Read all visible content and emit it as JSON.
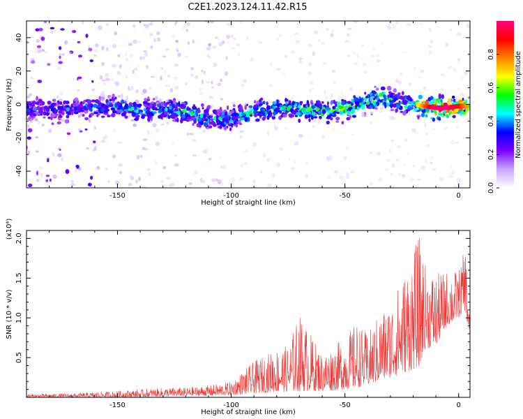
{
  "title": "C2E1.2023.124.11.42.R15",
  "chart_data": [
    {
      "type": "heatmap",
      "xlabel": "Height of straight line (km)",
      "ylabel": "Frequency (Hz)",
      "xlim": [
        -190,
        5
      ],
      "ylim": [
        -50,
        50
      ],
      "xticks": [
        -150,
        -100,
        -50,
        0
      ],
      "yticks": [
        -40,
        -20,
        0,
        20,
        40
      ],
      "colorbar": {
        "label": "Normalized spectral amplitude",
        "range": [
          0,
          1
        ],
        "ticks": [
          "0.0",
          "0.2",
          "0.4",
          "0.6",
          "0.8"
        ],
        "colors": [
          "#ffffff",
          "#c9a6ff",
          "#7b00ff",
          "#0000ff",
          "#00ffff",
          "#00ff00",
          "#ffff00",
          "#ff8000",
          "#ff0000",
          "#ff007f"
        ]
      },
      "ridge": {
        "x": [
          -190,
          -175,
          -160,
          -150,
          -140,
          -130,
          -120,
          -110,
          -100,
          -90,
          -80,
          -70,
          -60,
          -55,
          -50,
          -40,
          -35,
          -30,
          -20,
          -15,
          -10,
          -5,
          0,
          5
        ],
        "y": [
          -3,
          -3,
          -2,
          -1,
          -4,
          -3,
          -4,
          -9,
          -8,
          -4,
          -2,
          -3,
          -4,
          -4,
          -3,
          2,
          4,
          3,
          0,
          -1,
          -2,
          -2,
          -1,
          -1
        ],
        "peak": [
          0.35,
          0.35,
          0.4,
          0.45,
          0.45,
          0.45,
          0.5,
          0.45,
          0.45,
          0.5,
          0.5,
          0.5,
          0.55,
          0.6,
          0.6,
          0.55,
          0.55,
          0.5,
          0.5,
          0.8,
          1.0,
          1.0,
          0.9,
          0.7
        ]
      },
      "grid": false
    },
    {
      "type": "line",
      "xlabel": "Height of straight line (km)",
      "ylabel": "SNR (10 * v/v)",
      "scale_note": "(x10⁴)",
      "xlim": [
        -190,
        5
      ],
      "ylim": [
        0,
        2.1
      ],
      "xticks": [
        -150,
        -100,
        -50,
        0
      ],
      "yticks": [
        "0.5",
        "1.0",
        "1.5",
        "2.0"
      ],
      "color": "#ee3333",
      "envelope": {
        "x": [
          -190,
          -170,
          -150,
          -130,
          -120,
          -110,
          -100,
          -90,
          -80,
          -75,
          -70,
          -60,
          -50,
          -45,
          -40,
          -35,
          -30,
          -25,
          -20,
          -17,
          -15,
          -10,
          -5,
          0,
          3,
          5
        ],
        "max": [
          0.04,
          0.05,
          0.08,
          0.12,
          0.12,
          0.15,
          0.2,
          0.45,
          0.62,
          0.65,
          1.05,
          0.55,
          0.75,
          0.95,
          0.8,
          1.05,
          1.2,
          1.5,
          1.85,
          2.05,
          1.7,
          1.55,
          1.6,
          1.6,
          1.9,
          1.0
        ],
        "min": [
          0.0,
          0.0,
          0.0,
          0.01,
          0.02,
          0.02,
          0.03,
          0.05,
          0.07,
          0.07,
          0.08,
          0.08,
          0.1,
          0.12,
          0.15,
          0.2,
          0.25,
          0.3,
          0.35,
          0.4,
          0.6,
          0.65,
          0.9,
          1.0,
          1.1,
          0.6
        ]
      },
      "grid": false
    }
  ]
}
